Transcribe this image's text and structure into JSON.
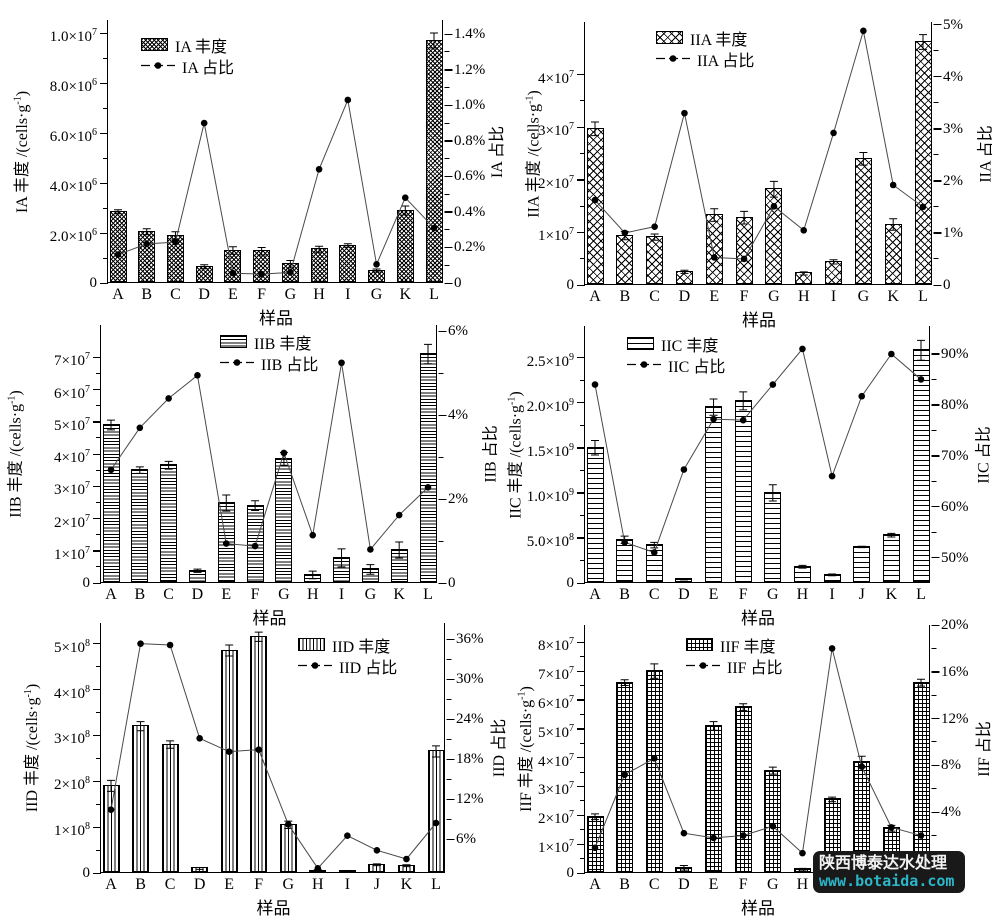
{
  "figure": {
    "background": "#ffffff",
    "xlabel": "样品"
  },
  "watermark": {
    "line1": "陕西博泰达水处理",
    "line2": "www.botaida.com",
    "bg_color": "#191919",
    "text_color": "#f2f2f2",
    "accent_color": "#2bb6c9"
  },
  "chart_data": [
    {
      "id": "IA",
      "type": "bar+line",
      "legend": {
        "bar": "IA 丰度",
        "line": "IA 占比"
      },
      "ylabel_left": "IA 丰度 /(cells·g^-1)",
      "ylabel_right": "IA 占比",
      "xlabel": "样品",
      "pattern": "hatch-diag-fine",
      "categories": [
        "A",
        "B",
        "C",
        "D",
        "E",
        "F",
        "G",
        "H",
        "I",
        "G",
        "K",
        "L"
      ],
      "bar_values": [
        2850000,
        2050000,
        1900000,
        650000,
        1300000,
        1270000,
        750000,
        1350000,
        1500000,
        500000,
        2900000,
        9700000
      ],
      "bar_errors": [
        80000,
        120000,
        150000,
        80000,
        150000,
        150000,
        150000,
        120000,
        70000,
        60000,
        180000,
        300000
      ],
      "line_values": [
        0.16,
        0.22,
        0.23,
        0.9,
        0.055,
        0.05,
        0.06,
        0.64,
        1.03,
        0.105,
        0.48,
        0.31
      ],
      "left_axis": {
        "min": 0,
        "max": 10520000,
        "ticks": [
          {
            "v": 0,
            "label": "0"
          },
          {
            "v": 2000000,
            "label": "2.0×10^6"
          },
          {
            "v": 4000000,
            "label": "4.0×10^6"
          },
          {
            "v": 6000000,
            "label": "6.0×10^6"
          },
          {
            "v": 8000000,
            "label": "8.0×10^6"
          },
          {
            "v": 10000000,
            "label": "1.0×10^7"
          }
        ]
      },
      "right_axis": {
        "min": 0,
        "max": 1.48,
        "ticks": [
          {
            "v": 0,
            "label": "0"
          },
          {
            "v": 0.2,
            "label": "0.2%"
          },
          {
            "v": 0.4,
            "label": "0.4%"
          },
          {
            "v": 0.6,
            "label": "0.6%"
          },
          {
            "v": 0.8,
            "label": "0.8%"
          },
          {
            "v": 1.0,
            "label": "1.0%"
          },
          {
            "v": 1.2,
            "label": "1.2%"
          },
          {
            "v": 1.4,
            "label": "1.4%"
          }
        ]
      }
    },
    {
      "id": "IIA",
      "type": "bar+line",
      "legend": {
        "bar": "IIA 丰度",
        "line": "IIA 占比"
      },
      "ylabel_left": "IIA 丰度 /(cells·g^-1)",
      "ylabel_right": "IIA 占比",
      "xlabel": "样品",
      "pattern": "hatch-diag",
      "categories": [
        "A",
        "B",
        "C",
        "D",
        "E",
        "F",
        "G",
        "H",
        "I",
        "G",
        "K",
        "L"
      ],
      "bar_values": [
        29700000,
        9400000,
        9100000,
        2500000,
        13300000,
        12800000,
        18200000,
        2200000,
        4400000,
        24000000,
        11500000,
        46200000
      ],
      "bar_errors": [
        1300000,
        800000,
        600000,
        300000,
        1200000,
        1200000,
        1500000,
        300000,
        400000,
        1200000,
        1100000,
        1400000
      ],
      "line_values": [
        1.63,
        1.0,
        1.12,
        3.3,
        0.53,
        0.5,
        1.51,
        1.05,
        2.92,
        4.88,
        1.92,
        1.5
      ],
      "left_axis": {
        "min": 0,
        "max": 50000000,
        "ticks": [
          {
            "v": 0,
            "label": "0"
          },
          {
            "v": 10000000,
            "label": "1×10^7"
          },
          {
            "v": 20000000,
            "label": "2×10^7"
          },
          {
            "v": 30000000,
            "label": "3×10^7"
          },
          {
            "v": 40000000,
            "label": "4×10^7"
          }
        ]
      },
      "right_axis": {
        "min": 0,
        "max": 5.05,
        "ticks": [
          {
            "v": 0,
            "label": "0"
          },
          {
            "v": 1,
            "label": "1%"
          },
          {
            "v": 2,
            "label": "2%"
          },
          {
            "v": 3,
            "label": "3%"
          },
          {
            "v": 4,
            "label": "4%"
          },
          {
            "v": 5,
            "label": "5%"
          }
        ]
      }
    },
    {
      "id": "IIB",
      "type": "bar+line",
      "legend": {
        "bar": "IIB 丰度",
        "line": "IIB 占比"
      },
      "ylabel_left": "IIB 丰度 /(cells·g^-1)",
      "ylabel_right": "IIB 占比",
      "xlabel": "样品",
      "pattern": "hatch-horiz-fine",
      "categories": [
        "A",
        "B",
        "C",
        "D",
        "E",
        "F",
        "G",
        "H",
        "I",
        "G",
        "K",
        "L"
      ],
      "bar_values": [
        49000000,
        35000000,
        36500000,
        3800000,
        24800000,
        24000000,
        38500000,
        2500000,
        7800000,
        4200000,
        10200000,
        71000000
      ],
      "bar_errors": [
        1500000,
        1000000,
        1200000,
        500000,
        2500000,
        1500000,
        2000000,
        1200000,
        2800000,
        1500000,
        2500000,
        3000000
      ],
      "line_values": [
        2.7,
        3.7,
        4.4,
        4.95,
        0.94,
        0.88,
        3.1,
        1.14,
        5.25,
        0.8,
        1.62,
        2.28
      ],
      "left_axis": {
        "min": 0,
        "max": 80000000,
        "ticks": [
          {
            "v": 0,
            "label": "0"
          },
          {
            "v": 10000000,
            "label": "1×10^7"
          },
          {
            "v": 20000000,
            "label": "2×10^7"
          },
          {
            "v": 30000000,
            "label": "3×10^7"
          },
          {
            "v": 40000000,
            "label": "4×10^7"
          },
          {
            "v": 50000000,
            "label": "5×10^7"
          },
          {
            "v": 60000000,
            "label": "6×10^7"
          },
          {
            "v": 70000000,
            "label": "7×10^7"
          }
        ]
      },
      "right_axis": {
        "min": 0,
        "max": 6.15,
        "ticks": [
          {
            "v": 0,
            "label": "0"
          },
          {
            "v": 2,
            "label": "2%"
          },
          {
            "v": 4,
            "label": "4%"
          },
          {
            "v": 6,
            "label": "6%"
          }
        ]
      }
    },
    {
      "id": "IIC",
      "type": "bar+line",
      "legend": {
        "bar": "IIC 丰度",
        "line": "IIC 占比"
      },
      "ylabel_left": "IIC 丰度 /(cells·g^-1)",
      "ylabel_right": "IIC 占比",
      "xlabel": "样品",
      "pattern": "hatch-horiz",
      "categories": [
        "A",
        "B",
        "C",
        "D",
        "E",
        "F",
        "G",
        "H",
        "I",
        "J",
        "K",
        "L"
      ],
      "bar_values": [
        1500000000,
        480000000,
        420000000,
        40000000,
        1950000000,
        2020000000,
        1000000000,
        180000000,
        90000000,
        400000000,
        530000000,
        2580000000
      ],
      "bar_errors": [
        80000000,
        40000000,
        30000000,
        6000000,
        90000000,
        100000000,
        90000000,
        15000000,
        10000000,
        8000000,
        20000000,
        110000000
      ],
      "line_values": [
        84,
        53,
        51,
        67.3,
        77.2,
        77,
        84,
        91,
        66,
        81.7,
        90,
        85
      ],
      "left_axis": {
        "min": 0,
        "max": 2850000000,
        "ticks": [
          {
            "v": 0,
            "label": "0"
          },
          {
            "v": 500000000,
            "label": "5.0×10^8"
          },
          {
            "v": 1000000000,
            "label": "1.0×10^9"
          },
          {
            "v": 1500000000,
            "label": "1.5×10^9"
          },
          {
            "v": 2000000000,
            "label": "2.0×10^9"
          },
          {
            "v": 2500000000,
            "label": "2.5×10^9"
          }
        ]
      },
      "right_axis": {
        "min": 45,
        "max": 95.5,
        "ticks": [
          {
            "v": 50,
            "label": "50%"
          },
          {
            "v": 60,
            "label": "60%"
          },
          {
            "v": 70,
            "label": "70%"
          },
          {
            "v": 80,
            "label": "80%"
          },
          {
            "v": 90,
            "label": "90%"
          }
        ]
      }
    },
    {
      "id": "IID",
      "type": "bar+line",
      "legend": {
        "bar": "IID 丰度",
        "line": "IID 占比"
      },
      "ylabel_left": "IID 丰度 /(cells·g^-1)",
      "ylabel_right": "IID 占比",
      "xlabel": "样品",
      "pattern": "hatch-vert",
      "categories": [
        "A",
        "B",
        "C",
        "D",
        "E",
        "F",
        "G",
        "H",
        "I",
        "J",
        "K",
        "L"
      ],
      "bar_values": [
        190000000,
        320000000,
        280000000,
        10000000,
        485000000,
        515000000,
        105000000,
        5000000,
        3000000,
        18000000,
        16000000,
        265000000
      ],
      "bar_errors": [
        12000000,
        10000000,
        8000000,
        2000000,
        12000000,
        10000000,
        8000000,
        2000000,
        2000000,
        2000000,
        2000000,
        12000000
      ],
      "line_values": [
        10.4,
        35.3,
        35.1,
        21.1,
        19.1,
        19.4,
        8.2,
        1.6,
        6.5,
        4.3,
        3.0,
        8.4
      ],
      "left_axis": {
        "min": 0,
        "max": 545000000,
        "ticks": [
          {
            "v": 0,
            "label": "0"
          },
          {
            "v": 100000000,
            "label": "1×10^8"
          },
          {
            "v": 200000000,
            "label": "2×10^8"
          },
          {
            "v": 300000000,
            "label": "3×10^8"
          },
          {
            "v": 400000000,
            "label": "4×10^8"
          },
          {
            "v": 500000000,
            "label": "5×10^8"
          }
        ]
      },
      "right_axis": {
        "min": 0.9,
        "max": 38.4,
        "ticks": [
          {
            "v": 6,
            "label": "6%"
          },
          {
            "v": 12,
            "label": "12%"
          },
          {
            "v": 18,
            "label": "18%"
          },
          {
            "v": 24,
            "label": "24%"
          },
          {
            "v": 30,
            "label": "30%"
          },
          {
            "v": 36,
            "label": "36%"
          }
        ]
      }
    },
    {
      "id": "IIF",
      "type": "bar+line",
      "legend": {
        "bar": "IIF 丰度",
        "line": "IIF 占比"
      },
      "ylabel_left": "IIF 丰度 /(cells·g^-1)",
      "ylabel_right": "IIF 占比",
      "xlabel": "样品",
      "pattern": "hatch-grid",
      "categories": [
        "A",
        "B",
        "C",
        "D",
        "E",
        "F",
        "G",
        "H",
        "I",
        "J",
        "K",
        "L"
      ],
      "bar_values": [
        19500000,
        66000000,
        70000000,
        1800000,
        51000000,
        57500000,
        35500000,
        1300000,
        25500000,
        38500000,
        15500000,
        66000000
      ],
      "bar_errors": [
        1000000,
        1000000,
        2500000,
        800000,
        1500000,
        1200000,
        1200000,
        300000,
        800000,
        2000000,
        1000000,
        1200000
      ],
      "line_values": [
        0.95,
        7.2,
        8.6,
        2.2,
        1.8,
        2.0,
        2.8,
        0.5,
        18.0,
        7.9,
        2.7,
        2.0
      ],
      "left_axis": {
        "min": 0,
        "max": 86000000,
        "ticks": [
          {
            "v": 0,
            "label": "0"
          },
          {
            "v": 10000000,
            "label": "1×10^7"
          },
          {
            "v": 20000000,
            "label": "2×10^7"
          },
          {
            "v": 30000000,
            "label": "3×10^7"
          },
          {
            "v": 40000000,
            "label": "4×10^7"
          },
          {
            "v": 50000000,
            "label": "5×10^7"
          },
          {
            "v": 60000000,
            "label": "6×10^7"
          },
          {
            "v": 70000000,
            "label": "7×10^7"
          },
          {
            "v": 80000000,
            "label": "8×10^7"
          }
        ]
      },
      "right_axis": {
        "min": -1.2,
        "max": 20,
        "ticks": [
          {
            "v": 0,
            "label": "0"
          },
          {
            "v": 4,
            "label": "4%"
          },
          {
            "v": 8,
            "label": "8%"
          },
          {
            "v": 12,
            "label": "12%"
          },
          {
            "v": 16,
            "label": "16%"
          },
          {
            "v": 20,
            "label": "20%"
          }
        ]
      }
    }
  ]
}
